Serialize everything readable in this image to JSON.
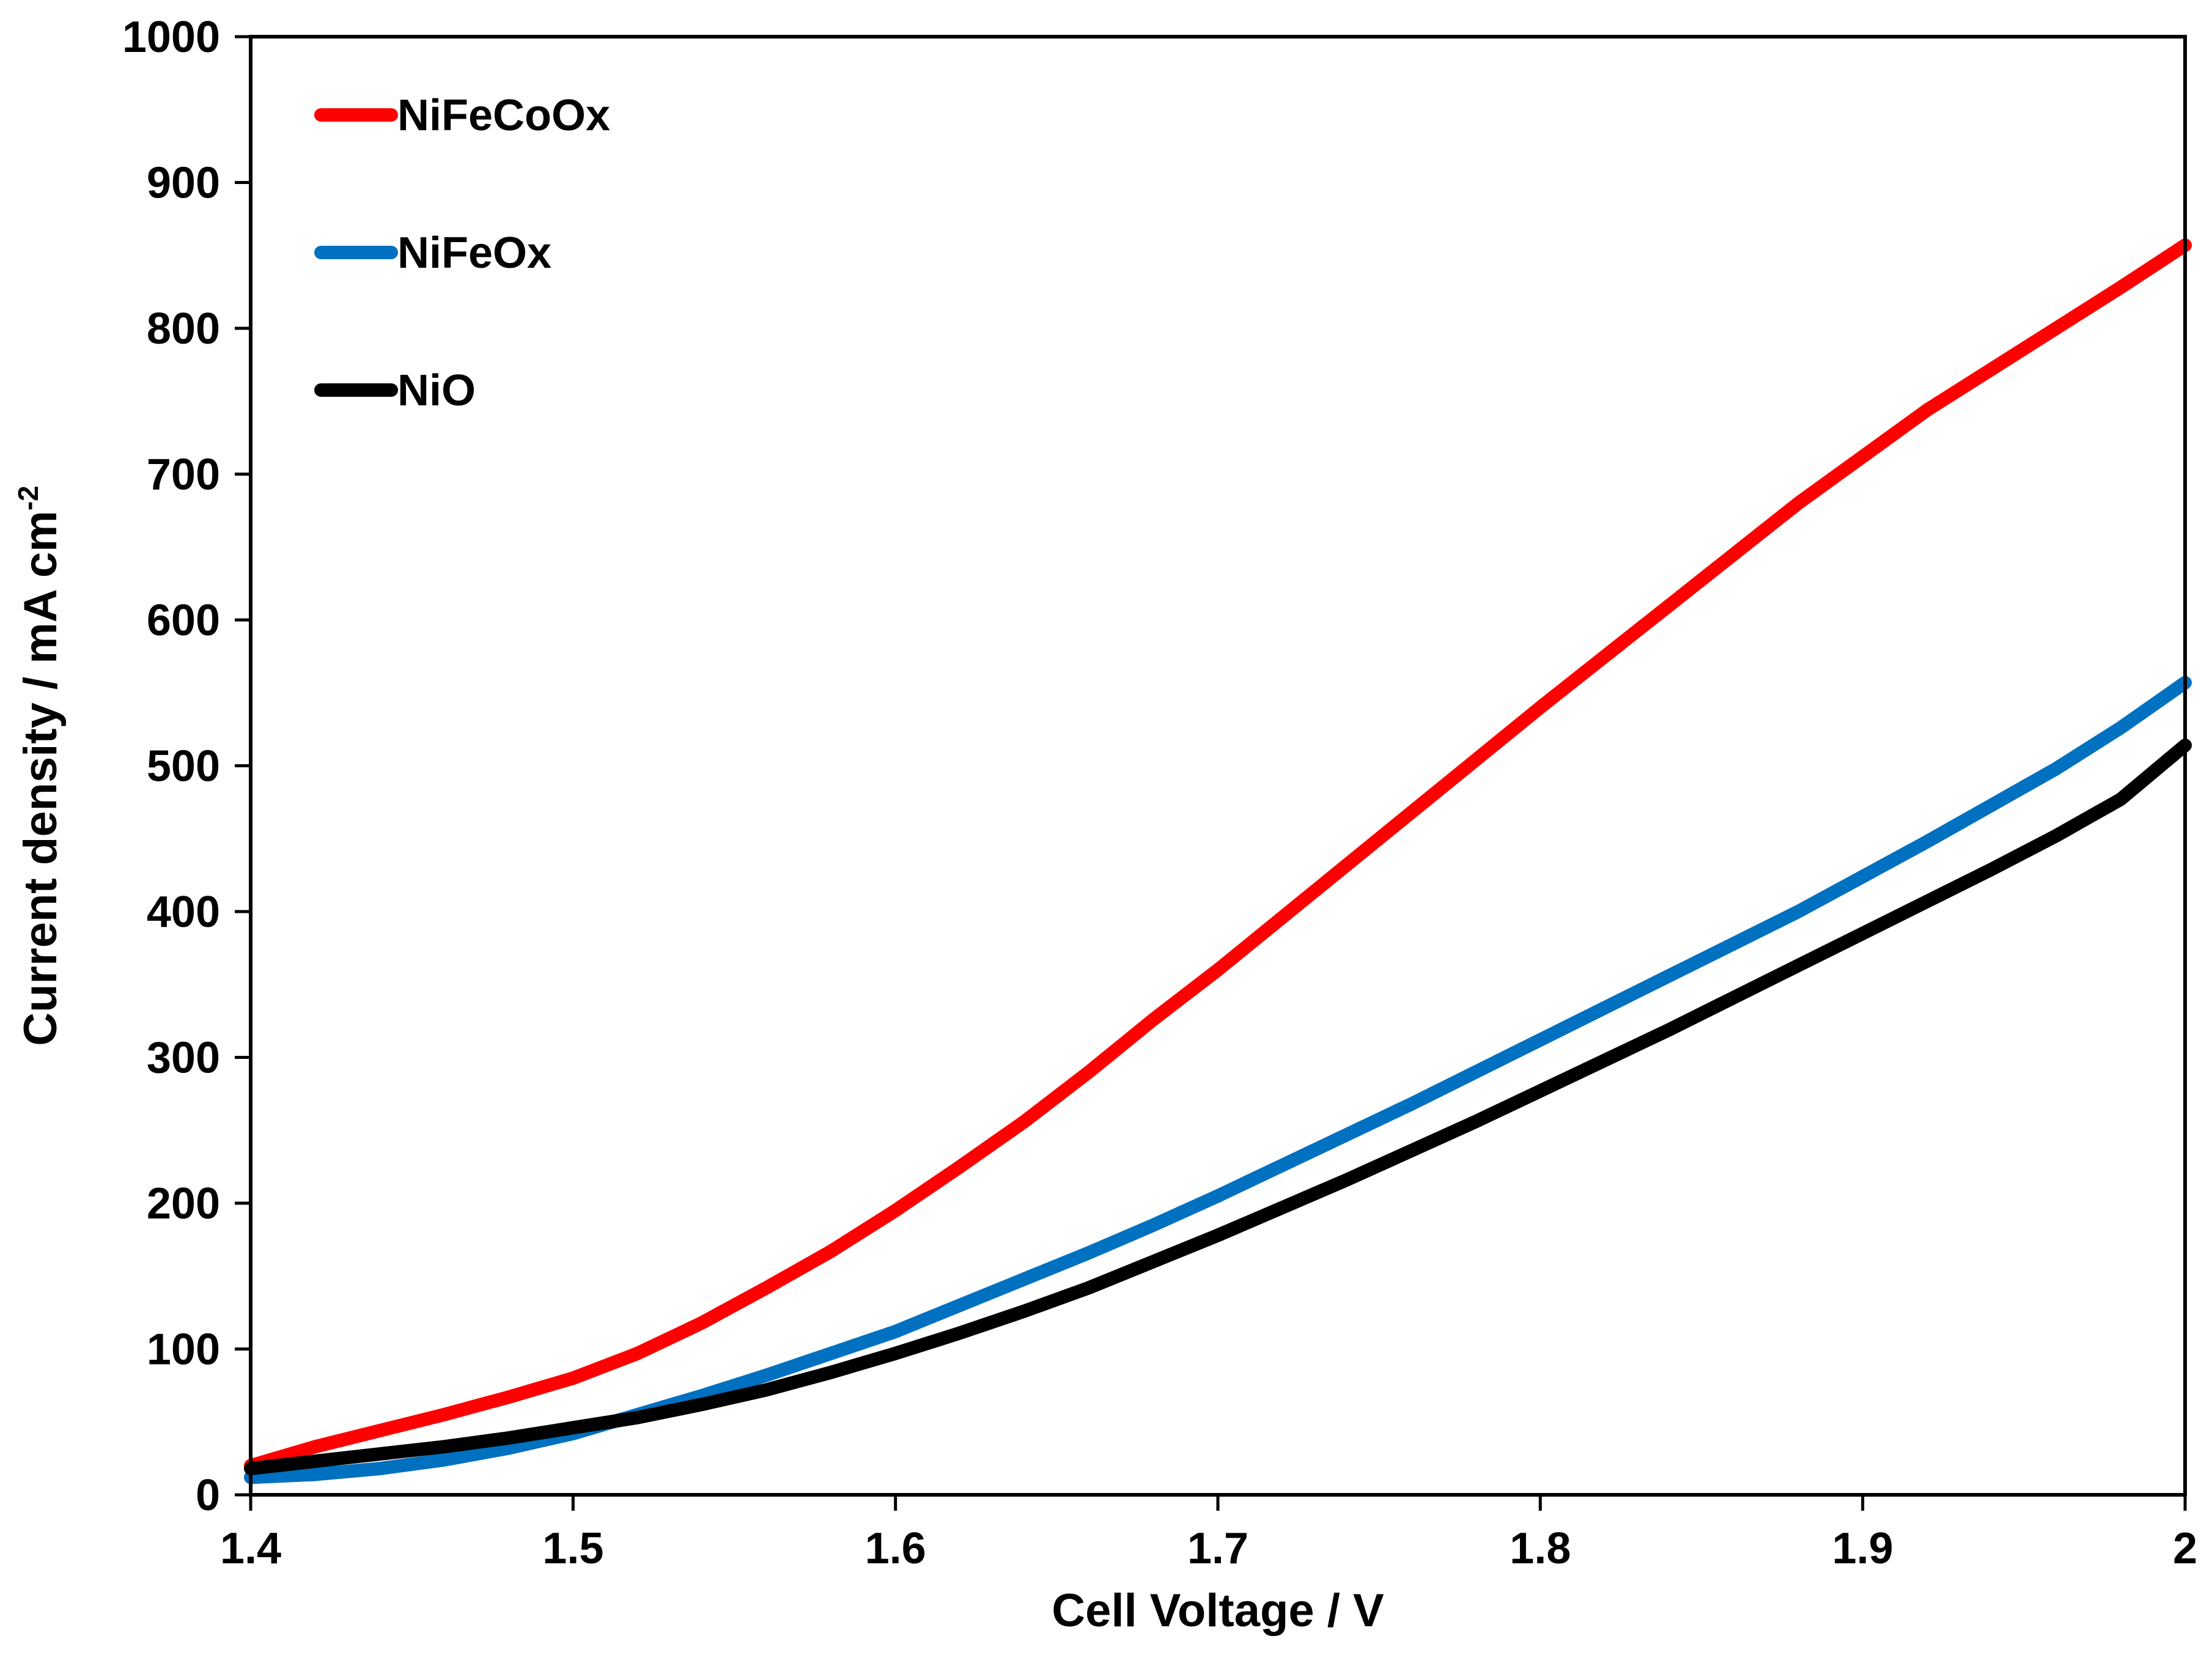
{
  "chart_data": {
    "type": "line",
    "title": "",
    "xlabel": "Cell Voltage / V",
    "ylabel_main": "Current density / mA cm",
    "ylabel_sup": "-2",
    "xlim": [
      1.4,
      2.0
    ],
    "ylim": [
      0,
      1000
    ],
    "x_ticks": [
      1.4,
      1.5,
      1.6,
      1.7,
      1.8,
      1.9,
      2.0
    ],
    "x_tick_labels": [
      "1.4",
      "1.5",
      "1.6",
      "1.7",
      "1.8",
      "1.9",
      "2"
    ],
    "y_ticks": [
      0,
      100,
      200,
      300,
      400,
      500,
      600,
      700,
      800,
      900,
      1000
    ],
    "y_tick_labels": [
      "0",
      "100",
      "200",
      "300",
      "400",
      "500",
      "600",
      "700",
      "800",
      "900",
      "1000"
    ],
    "grid": false,
    "legend_position": "top-left",
    "series": [
      {
        "name": "NiFeCoOx",
        "color": "#ff0000",
        "x": [
          1.4,
          1.42,
          1.44,
          1.46,
          1.48,
          1.5,
          1.52,
          1.54,
          1.56,
          1.58,
          1.6,
          1.62,
          1.64,
          1.66,
          1.68,
          1.7,
          1.72,
          1.74,
          1.76,
          1.78,
          1.8,
          1.82,
          1.84,
          1.86,
          1.88,
          1.9,
          1.92,
          1.94,
          1.96,
          1.98,
          2.0
        ],
        "values": [
          20,
          33,
          44,
          55,
          67,
          80,
          97,
          118,
          142,
          167,
          195,
          225,
          256,
          290,
          326,
          360,
          396,
          432,
          468,
          504,
          540,
          575,
          610,
          645,
          680,
          712,
          744,
          772,
          800,
          828,
          857
        ]
      },
      {
        "name": "NiFeOx",
        "color": "#0070c0",
        "x": [
          1.4,
          1.42,
          1.44,
          1.46,
          1.48,
          1.5,
          1.52,
          1.54,
          1.56,
          1.58,
          1.6,
          1.62,
          1.64,
          1.66,
          1.68,
          1.7,
          1.72,
          1.74,
          1.76,
          1.78,
          1.8,
          1.82,
          1.84,
          1.86,
          1.88,
          1.9,
          1.92,
          1.94,
          1.96,
          1.98,
          2.0
        ],
        "values": [
          12,
          14,
          18,
          24,
          32,
          42,
          55,
          68,
          82,
          97,
          112,
          130,
          148,
          166,
          185,
          205,
          226,
          247,
          268,
          290,
          312,
          334,
          356,
          378,
          400,
          424,
          448,
          473,
          498,
          526,
          557
        ]
      },
      {
        "name": "NiO",
        "color": "#000000",
        "x": [
          1.4,
          1.42,
          1.44,
          1.46,
          1.48,
          1.5,
          1.52,
          1.54,
          1.56,
          1.58,
          1.6,
          1.62,
          1.64,
          1.66,
          1.68,
          1.7,
          1.72,
          1.74,
          1.76,
          1.78,
          1.8,
          1.82,
          1.84,
          1.86,
          1.88,
          1.9,
          1.92,
          1.94,
          1.96,
          1.98,
          2.0
        ],
        "values": [
          18,
          23,
          28,
          33,
          39,
          46,
          53,
          62,
          72,
          84,
          97,
          111,
          126,
          142,
          160,
          178,
          197,
          216,
          236,
          256,
          277,
          298,
          319,
          341,
          363,
          385,
          407,
          429,
          452,
          477,
          514
        ]
      }
    ]
  }
}
